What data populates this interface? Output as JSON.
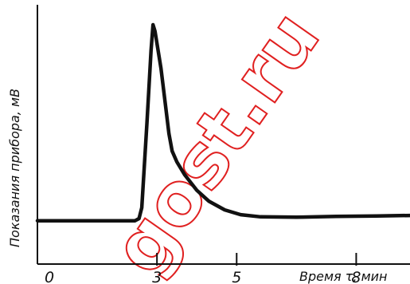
{
  "chart_data": {
    "type": "line",
    "title": "",
    "xlabel": "Время τ, мин",
    "ylabel": "Показания прибора, мВ",
    "xlim": [
      0,
      9.35
    ],
    "ylim": [
      0,
      100
    ],
    "grid": false,
    "xticks": [
      0,
      3,
      5,
      8
    ],
    "xtick_labels": [
      "0",
      "3",
      "5",
      "8"
    ],
    "series": [
      {
        "values": [
          {
            "x": 0.0,
            "y": 10
          },
          {
            "x": 2.45,
            "y": 10
          },
          {
            "x": 2.55,
            "y": 11
          },
          {
            "x": 2.62,
            "y": 16
          },
          {
            "x": 2.75,
            "y": 55
          },
          {
            "x": 2.85,
            "y": 88
          },
          {
            "x": 2.9,
            "y": 100
          },
          {
            "x": 2.95,
            "y": 97
          },
          {
            "x": 3.1,
            "y": 80
          },
          {
            "x": 3.2,
            "y": 65
          },
          {
            "x": 3.3,
            "y": 50
          },
          {
            "x": 3.38,
            "y": 42
          },
          {
            "x": 3.5,
            "y": 37
          },
          {
            "x": 3.7,
            "y": 31
          },
          {
            "x": 4.0,
            "y": 24
          },
          {
            "x": 4.3,
            "y": 19
          },
          {
            "x": 4.7,
            "y": 15
          },
          {
            "x": 5.1,
            "y": 12.8
          },
          {
            "x": 5.6,
            "y": 11.8
          },
          {
            "x": 6.5,
            "y": 11.6
          },
          {
            "x": 7.5,
            "y": 12
          },
          {
            "x": 8.5,
            "y": 12.2
          },
          {
            "x": 9.35,
            "y": 12.4
          }
        ]
      }
    ]
  },
  "watermark": {
    "text": "gost.ru",
    "color": "#e02020"
  },
  "colors": {
    "line": "#111111",
    "axis": "#111111"
  }
}
